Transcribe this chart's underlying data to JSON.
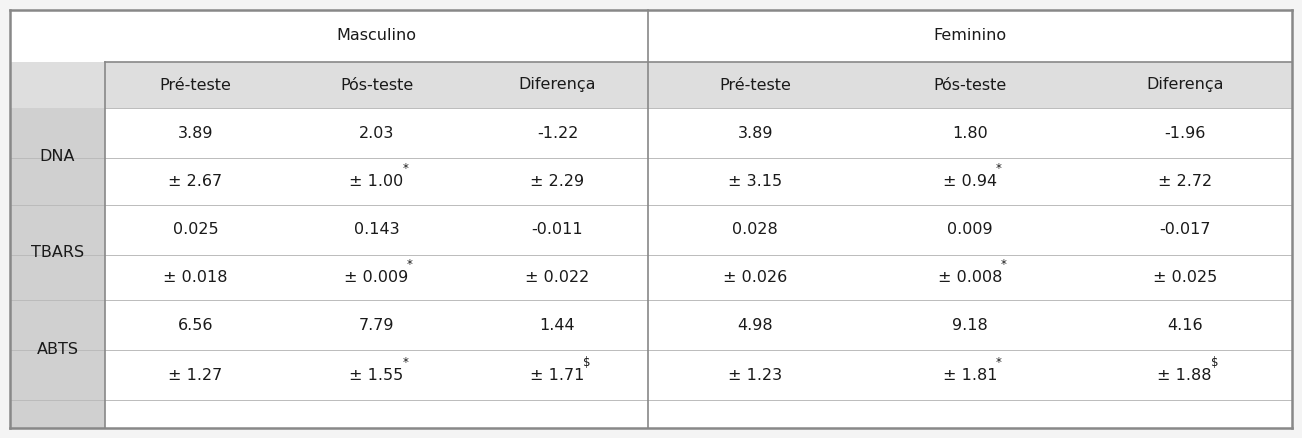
{
  "group_headers": [
    "Masculino",
    "Feminino"
  ],
  "col_headers": [
    "Pré-teste",
    "Pós-teste",
    "Diferença",
    "Pré-teste",
    "Pós-teste",
    "Diferença"
  ],
  "row_labels": [
    "DNA",
    "",
    "TBARS",
    "",
    "ABTS",
    ""
  ],
  "rows": [
    [
      "3.89",
      "2.03",
      "-1.22",
      "3.89",
      "1.80",
      "-1.96"
    ],
    [
      "± 2.67",
      "± 1.00|*",
      "± 2.29",
      "± 3.15",
      "± 0.94|*",
      "± 2.72"
    ],
    [
      "0.025",
      "0.143",
      "-0.011",
      "0.028",
      "0.009",
      "-0.017"
    ],
    [
      "± 0.018",
      "± 0.009|*",
      "± 0.022",
      "± 0.026",
      "± 0.008|*",
      "± 0.025"
    ],
    [
      "6.56",
      "7.79",
      "1.44",
      "4.98",
      "9.18",
      "4.16"
    ],
    [
      "± 1.27",
      "± 1.55|*",
      "± 1.71|$",
      "± 1.23",
      "± 1.81|*",
      "± 1.88|$"
    ]
  ],
  "bg_white": "#ffffff",
  "bg_header": "#dedede",
  "bg_label": "#d0d0d0",
  "bg_fig": "#f4f4f4",
  "text_color": "#1a1a1a",
  "line_color_outer": "#888888",
  "line_color_inner": "#bbbbbb",
  "line_color_mid": "#888888",
  "font_size": 11.5
}
